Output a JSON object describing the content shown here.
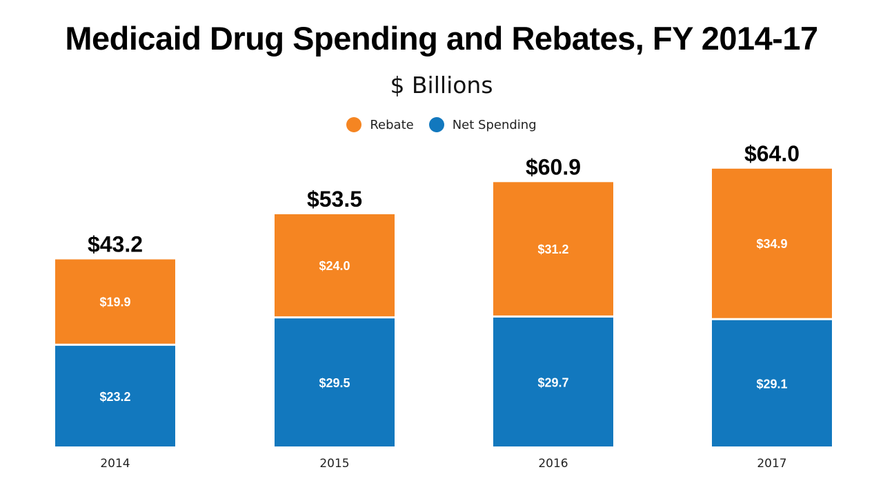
{
  "chart_data": {
    "type": "bar",
    "stacked": true,
    "title": "Medicaid Drug Spending and Rebates, FY 2014-17",
    "subtitle": "$ Billions",
    "categories": [
      "2014",
      "2015",
      "2016",
      "2017"
    ],
    "series": [
      {
        "name": "Net Spending",
        "values": [
          23.2,
          29.5,
          29.7,
          29.1
        ],
        "labels": [
          "$23.2",
          "$29.5",
          "$29.7",
          "$29.1"
        ],
        "color": "#1278BE"
      },
      {
        "name": "Rebate",
        "values": [
          19.9,
          24.0,
          31.2,
          34.9
        ],
        "labels": [
          "$19.9",
          "$24.0",
          "$31.2",
          "$34.9"
        ],
        "color": "#F58522"
      }
    ],
    "totals": [
      43.2,
      53.5,
      60.9,
      64.0
    ],
    "total_labels": [
      "$43.2",
      "$53.5",
      "$60.9",
      "$64.0"
    ],
    "legend": {
      "position": "top",
      "order": [
        "Rebate",
        "Net Spending"
      ]
    },
    "grid": false,
    "xlabel": "",
    "ylabel": ""
  }
}
